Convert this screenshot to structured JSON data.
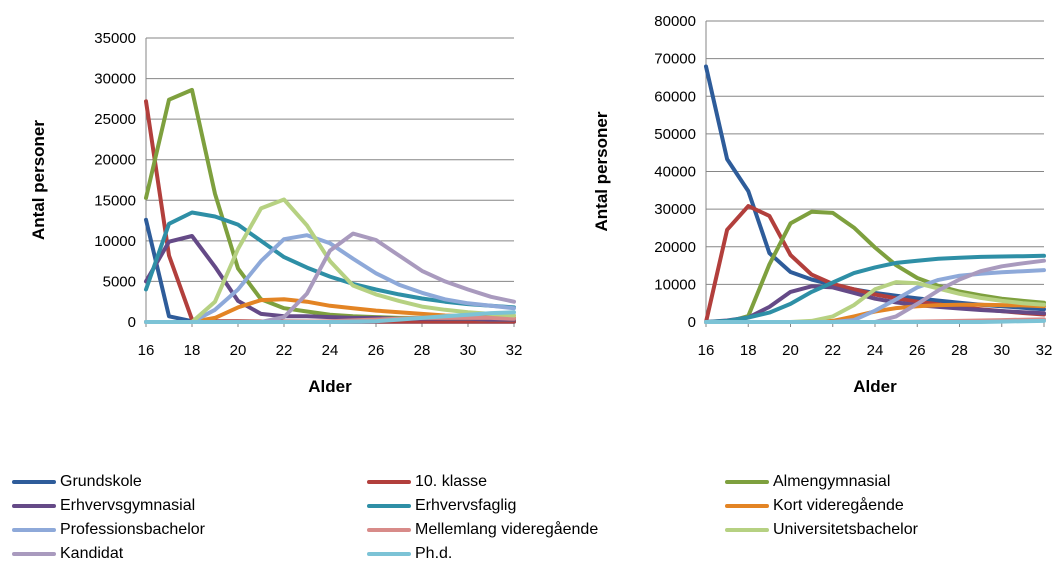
{
  "chart_data": [
    {
      "type": "line",
      "title": "",
      "xlabel": "Alder",
      "ylabel": "Antal personer",
      "x": [
        16,
        17,
        18,
        19,
        20,
        21,
        22,
        23,
        24,
        25,
        26,
        27,
        28,
        29,
        30,
        31,
        32
      ],
      "x_ticks": [
        16,
        18,
        20,
        22,
        24,
        26,
        28,
        30,
        32
      ],
      "y_ticks": [
        0,
        5000,
        10000,
        15000,
        20000,
        25000,
        30000,
        35000
      ],
      "ylim": [
        0,
        35000
      ],
      "grid": true,
      "series": [
        {
          "name": "Grundskole",
          "color": "#2E5C9A",
          "values": [
            12600,
            700,
            100,
            50,
            50,
            30,
            30,
            30,
            30,
            30,
            30,
            30,
            30,
            30,
            30,
            30,
            30
          ]
        },
        {
          "name": "10. klasse",
          "color": "#B23F3C",
          "values": [
            27200,
            8200,
            300,
            100,
            100,
            50,
            50,
            50,
            50,
            50,
            50,
            50,
            50,
            50,
            50,
            50,
            50
          ]
        },
        {
          "name": "Almengymnasial",
          "color": "#7EA03E",
          "values": [
            15300,
            27400,
            28600,
            15800,
            6600,
            2800,
            1700,
            1300,
            900,
            700,
            600,
            500,
            500,
            400,
            400,
            300,
            300
          ]
        },
        {
          "name": "Erhvervsgymnasial",
          "color": "#654A87",
          "values": [
            5000,
            9900,
            10600,
            6800,
            2600,
            1000,
            700,
            700,
            600,
            500,
            500,
            400,
            400,
            400,
            400,
            300,
            300
          ]
        },
        {
          "name": "Erhvervsfaglig",
          "color": "#2E8FA6",
          "values": [
            4000,
            12100,
            13500,
            13000,
            12000,
            10000,
            8000,
            6700,
            5600,
            4700,
            4000,
            3400,
            2900,
            2500,
            2200,
            2000,
            1800
          ]
        },
        {
          "name": "Kort videregående",
          "color": "#E38424",
          "values": [
            0,
            0,
            0,
            500,
            1800,
            2700,
            2800,
            2500,
            2000,
            1700,
            1400,
            1200,
            1000,
            800,
            700,
            600,
            500
          ]
        },
        {
          "name": "Professionsbachelor",
          "color": "#8EA9D9",
          "values": [
            0,
            0,
            0,
            1500,
            4000,
            7500,
            10200,
            10700,
            9700,
            7800,
            6000,
            4600,
            3600,
            2800,
            2300,
            2000,
            1700
          ]
        },
        {
          "name": "Mellemlang videregående",
          "color": "#D88B89",
          "values": [
            0,
            0,
            0,
            0,
            0,
            0,
            0,
            50,
            100,
            200,
            300,
            400,
            500,
            500,
            500,
            500,
            400
          ]
        },
        {
          "name": "Universitetsbachelor",
          "color": "#B6D182",
          "values": [
            0,
            0,
            0,
            2500,
            9000,
            14000,
            15100,
            11900,
            7500,
            4500,
            3400,
            2600,
            1900,
            1500,
            1200,
            1000,
            800
          ]
        },
        {
          "name": "Kandidat",
          "color": "#A99ABE",
          "values": [
            0,
            0,
            0,
            0,
            0,
            0,
            600,
            3500,
            8800,
            10900,
            10100,
            8200,
            6300,
            5000,
            4000,
            3100,
            2500
          ]
        },
        {
          "name": "Ph.d.",
          "color": "#7CC3D6",
          "values": [
            0,
            0,
            0,
            0,
            0,
            0,
            0,
            0,
            0,
            50,
            100,
            300,
            500,
            700,
            900,
            1100,
            1200
          ]
        }
      ]
    },
    {
      "type": "line",
      "title": "",
      "xlabel": "Alder",
      "ylabel": "Antal personer",
      "x": [
        16,
        17,
        18,
        19,
        20,
        21,
        22,
        23,
        24,
        25,
        26,
        27,
        28,
        29,
        30,
        31,
        32
      ],
      "x_ticks": [
        16,
        18,
        20,
        22,
        24,
        26,
        28,
        30,
        32
      ],
      "y_ticks": [
        0,
        10000,
        20000,
        30000,
        40000,
        50000,
        60000,
        70000,
        80000
      ],
      "ylim": [
        0,
        80000
      ],
      "grid": true,
      "series": [
        {
          "name": "Grundskole",
          "color": "#2E5C9A",
          "values": [
            67900,
            43300,
            34800,
            18300,
            13300,
            11300,
            9900,
            8700,
            7700,
            7000,
            6300,
            5700,
            5100,
            4600,
            4200,
            3800,
            3400
          ]
        },
        {
          "name": "10. klasse",
          "color": "#B23F3C",
          "values": [
            0,
            24500,
            30800,
            28200,
            17800,
            12600,
            10100,
            8700,
            7300,
            6300,
            5400,
            4700,
            4000,
            3400,
            2900,
            2400,
            2000
          ]
        },
        {
          "name": "Almengymnasial",
          "color": "#7EA03E",
          "values": [
            0,
            0,
            1600,
            15300,
            26200,
            29300,
            29000,
            25100,
            19800,
            15100,
            11700,
            9600,
            8100,
            7100,
            6200,
            5600,
            5100
          ]
        },
        {
          "name": "Erhvervsgymnasial",
          "color": "#654A87",
          "values": [
            0,
            400,
            1200,
            4000,
            8000,
            9500,
            9200,
            7700,
            6200,
            5200,
            4500,
            4000,
            3600,
            3200,
            2900,
            2600,
            2300
          ]
        },
        {
          "name": "Erhvervsfaglig",
          "color": "#2E8FA6",
          "values": [
            0,
            300,
            1200,
            2500,
            4800,
            8000,
            10500,
            13000,
            14500,
            15700,
            16300,
            16800,
            17100,
            17300,
            17400,
            17500,
            17600
          ]
        },
        {
          "name": "Kort videregående",
          "color": "#E38424",
          "values": [
            0,
            0,
            0,
            0,
            0,
            0,
            300,
            1500,
            2800,
            3700,
            4200,
            4500,
            4600,
            4600,
            4500,
            4400,
            4200
          ]
        },
        {
          "name": "Professionsbachelor",
          "color": "#8EA9D9",
          "values": [
            0,
            0,
            0,
            0,
            0,
            0,
            0,
            500,
            3000,
            6000,
            9200,
            11200,
            12300,
            12800,
            13200,
            13500,
            13800
          ]
        },
        {
          "name": "Mellemlang videregående",
          "color": "#D88B89",
          "values": [
            0,
            0,
            0,
            0,
            0,
            0,
            0,
            0,
            0,
            0,
            100,
            200,
            300,
            400,
            500,
            600,
            700
          ]
        },
        {
          "name": "Universitetsbachelor",
          "color": "#B6D182",
          "values": [
            0,
            0,
            0,
            0,
            0,
            300,
            1500,
            4500,
            8700,
            10600,
            10300,
            8900,
            7500,
            6400,
            5600,
            5000,
            4600
          ]
        },
        {
          "name": "Kandidat",
          "color": "#A99ABE",
          "values": [
            0,
            0,
            0,
            0,
            0,
            0,
            0,
            0,
            0,
            1500,
            4800,
            8400,
            11300,
            13500,
            14800,
            15600,
            16300
          ]
        },
        {
          "name": "Ph.d.",
          "color": "#7CC3D6",
          "values": [
            0,
            0,
            0,
            0,
            0,
            0,
            0,
            0,
            0,
            0,
            0,
            0,
            0,
            0,
            100,
            200,
            300
          ]
        }
      ]
    }
  ],
  "legend": [
    [
      {
        "label": "Grundskole",
        "color": "#2E5C9A"
      },
      {
        "label": "10. klasse",
        "color": "#B23F3C"
      },
      {
        "label": "Almengymnasial",
        "color": "#7EA03E"
      }
    ],
    [
      {
        "label": "Erhvervsgymnasial",
        "color": "#654A87"
      },
      {
        "label": "Erhvervsfaglig",
        "color": "#2E8FA6"
      },
      {
        "label": "Kort videregående",
        "color": "#E38424"
      }
    ],
    [
      {
        "label": "Professionsbachelor",
        "color": "#8EA9D9"
      },
      {
        "label": "Mellemlang videregående",
        "color": "#D88B89"
      },
      {
        "label": "Universitetsbachelor",
        "color": "#B6D182"
      }
    ],
    [
      {
        "label": "Kandidat",
        "color": "#A99ABE"
      },
      {
        "label": "Ph.d.",
        "color": "#7CC3D6"
      }
    ]
  ]
}
